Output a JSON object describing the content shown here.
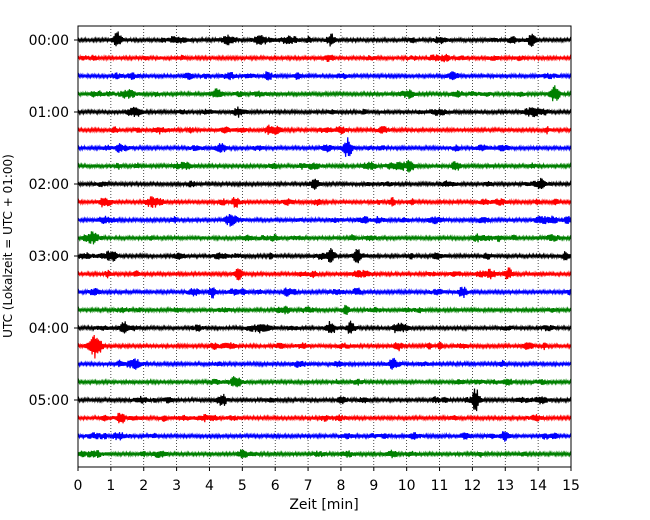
{
  "chart_data": {
    "type": "line",
    "title": "",
    "xlabel": "Zeit  [min]",
    "ylabel": "UTC (Lokalzeit = UTC + 01:00)",
    "xlim": [
      0,
      15
    ],
    "x_ticks": [
      "0",
      "1",
      "2",
      "3",
      "4",
      "5",
      "6",
      "7",
      "8",
      "9",
      "10",
      "11",
      "12",
      "13",
      "14",
      "15"
    ],
    "y_tick_labels": [
      "00:00",
      "01:00",
      "02:00",
      "03:00",
      "04:00",
      "05:00"
    ],
    "rows_per_hour": 4,
    "row_count": 24,
    "color_cycle": [
      "#000000",
      "#ff0000",
      "#0000ff",
      "#008000"
    ],
    "grid": "vertical dotted lines at each minute",
    "events": [
      {
        "row": 0,
        "x": 1.2,
        "amp": 2.2
      },
      {
        "row": 0,
        "x": 7.7,
        "amp": 1.6
      },
      {
        "row": 0,
        "x": 13.8,
        "amp": 1.6
      },
      {
        "row": 3,
        "x": 14.5,
        "amp": 1.8
      },
      {
        "row": 4,
        "x": 1.8,
        "amp": 1.5
      },
      {
        "row": 6,
        "x": 8.2,
        "amp": 2.0
      },
      {
        "row": 7,
        "x": 10.1,
        "amp": 1.6
      },
      {
        "row": 7,
        "x": 11.5,
        "amp": 1.4
      },
      {
        "row": 8,
        "x": 7.2,
        "amp": 1.6
      },
      {
        "row": 9,
        "x": 4.8,
        "amp": 1.4
      },
      {
        "row": 12,
        "x": 7.7,
        "amp": 1.9
      },
      {
        "row": 12,
        "x": 8.5,
        "amp": 1.5
      },
      {
        "row": 13,
        "x": 4.9,
        "amp": 1.7
      },
      {
        "row": 13,
        "x": 13.1,
        "amp": 1.6
      },
      {
        "row": 14,
        "x": 4.1,
        "amp": 1.5
      },
      {
        "row": 14,
        "x": 11.7,
        "amp": 1.5
      },
      {
        "row": 16,
        "x": 1.4,
        "amp": 1.7
      },
      {
        "row": 16,
        "x": 7.7,
        "amp": 2.0
      },
      {
        "row": 16,
        "x": 8.3,
        "amp": 1.7
      },
      {
        "row": 17,
        "x": 0.5,
        "amp": 2.3
      },
      {
        "row": 20,
        "x": 12.1,
        "amp": 3.2
      },
      {
        "row": 20,
        "x": 4.4,
        "amp": 1.6
      },
      {
        "row": 21,
        "x": 1.3,
        "amp": 1.6
      },
      {
        "row": 22,
        "x": 13.0,
        "amp": 1.5
      },
      {
        "row": 23,
        "x": 5.0,
        "amp": 1.5
      }
    ]
  }
}
